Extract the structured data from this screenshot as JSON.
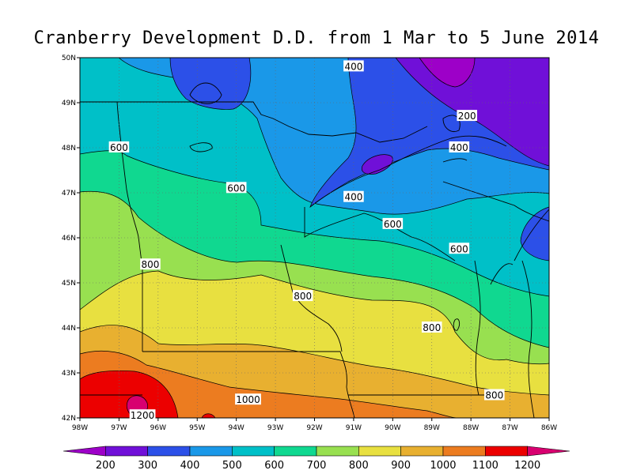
{
  "title": "Cranberry Development D.D. from 1 Mar to 5 June 2014",
  "lat_labels": [
    "50N",
    "49N",
    "48N",
    "47N",
    "46N",
    "45N",
    "44N",
    "43N",
    "42N"
  ],
  "lon_labels": [
    "98W",
    "97W",
    "96W",
    "95W",
    "94W",
    "93W",
    "92W",
    "91W",
    "90W",
    "89W",
    "88W",
    "87W",
    "86W"
  ],
  "contour_labels": [
    {
      "text": "400",
      "lon": -91.0,
      "lat": 49.8
    },
    {
      "text": "200",
      "lon": -88.1,
      "lat": 48.7
    },
    {
      "text": "400",
      "lon": -88.3,
      "lat": 48.0
    },
    {
      "text": "600",
      "lon": -97.0,
      "lat": 48.0
    },
    {
      "text": "600",
      "lon": -94.0,
      "lat": 47.1
    },
    {
      "text": "400",
      "lon": -91.0,
      "lat": 46.9
    },
    {
      "text": "600",
      "lon": -90.0,
      "lat": 46.3
    },
    {
      "text": "600",
      "lon": -88.3,
      "lat": 45.75
    },
    {
      "text": "800",
      "lon": -96.2,
      "lat": 45.4
    },
    {
      "text": "800",
      "lon": -92.3,
      "lat": 44.7
    },
    {
      "text": "800",
      "lon": -89.0,
      "lat": 44.0
    },
    {
      "text": "1000",
      "lon": -93.7,
      "lat": 42.4
    },
    {
      "text": "800",
      "lon": -87.4,
      "lat": 42.5
    },
    {
      "text": "1200",
      "lon": -96.4,
      "lat": 42.05
    }
  ],
  "colorbar": {
    "labels": [
      "200",
      "300",
      "400",
      "500",
      "600",
      "700",
      "800",
      "900",
      "1000",
      "1100",
      "1200"
    ],
    "colors": [
      "#9d00c8",
      "#7010d8",
      "#2c50e8",
      "#1a98e8",
      "#00c0c8",
      "#10d890",
      "#98e050",
      "#e8e040",
      "#e8b030",
      "#ec7c20",
      "#ec0000",
      "#d80070"
    ]
  },
  "chart_data": {
    "type": "heatmap",
    "title": "Cranberry Development D.D. from 1 Mar to 5 June 2014",
    "xlim": [
      -98,
      -86
    ],
    "ylim": [
      42,
      50
    ],
    "levels": [
      200,
      300,
      400,
      500,
      600,
      700,
      800,
      900,
      1000,
      1100,
      1200
    ],
    "contour_labels": [
      400,
      200,
      400,
      600,
      600,
      400,
      600,
      600,
      800,
      800,
      800,
      1000,
      800,
      1200
    ]
  }
}
